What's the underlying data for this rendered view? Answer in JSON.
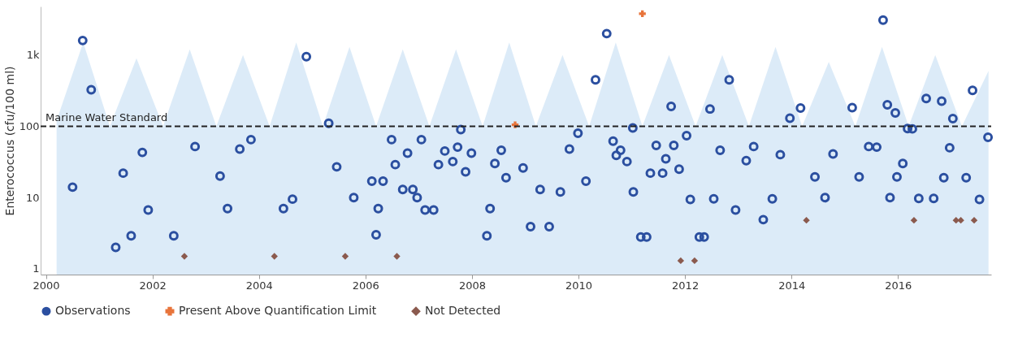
{
  "chart_data": {
    "type": "scatter",
    "ylabel": "Enterococcus (cfu/100 ml)",
    "xlim": [
      1999.9,
      2017.75
    ],
    "xticks": [
      2000,
      2002,
      2004,
      2006,
      2008,
      2010,
      2012,
      2014,
      2016
    ],
    "ylim": [
      0.83,
      4800
    ],
    "yticks": [
      1,
      10,
      100,
      {
        "value": 1000,
        "label": "1k"
      }
    ],
    "log": "y",
    "grid": false,
    "legend": "bottom",
    "ref_lines": [
      {
        "axis": "y",
        "value": 100,
        "label": "Marine Water Standard",
        "color": "#222222",
        "line_style": "dashed"
      }
    ],
    "series": [
      {
        "type": "area",
        "color": "#d6e7f7",
        "x": [
          2000.2,
          2000.7,
          2001.2,
          2001.7,
          2002.2,
          2002.7,
          2003.2,
          2003.7,
          2004.2,
          2004.7,
          2005.2,
          2005.7,
          2006.2,
          2006.7,
          2007.2,
          2007.7,
          2008.2,
          2008.7,
          2009.2,
          2009.7,
          2010.2,
          2010.7,
          2011.2,
          2011.7,
          2012.2,
          2012.7,
          2013.2,
          2013.7,
          2014.2,
          2014.7,
          2015.2,
          2015.7,
          2016.2,
          2016.7,
          2017.2,
          2017.7
        ],
        "values": [
          120,
          1500,
          100,
          900,
          100,
          1200,
          100,
          1000,
          100,
          1500,
          100,
          1300,
          100,
          1200,
          100,
          1200,
          100,
          1500,
          100,
          1000,
          100,
          1500,
          100,
          1000,
          100,
          1000,
          100,
          1300,
          100,
          800,
          100,
          1300,
          100,
          1000,
          100,
          600
        ]
      },
      {
        "name": "Observations",
        "marker": "circle",
        "color": "#2b4fa0",
        "x": [
          2000.5,
          2000.69,
          2000.85,
          2001.31,
          2001.45,
          2001.6,
          2001.81,
          2001.92,
          2002.4,
          2002.8,
          2003.27,
          2003.41,
          2003.64,
          2003.85,
          2004.46,
          2004.63,
          2004.89,
          2005.31,
          2005.46,
          2005.78,
          2006.12,
          2006.2,
          2006.24,
          2006.33,
          2006.49,
          2006.56,
          2006.7,
          2006.79,
          2006.89,
          2006.97,
          2007.05,
          2007.12,
          2007.28,
          2007.37,
          2007.49,
          2007.64,
          2007.73,
          2007.79,
          2007.88,
          2007.99,
          2008.28,
          2008.34,
          2008.43,
          2008.55,
          2008.64,
          2008.96,
          2009.1,
          2009.28,
          2009.45,
          2009.66,
          2009.83,
          2009.99,
          2010.14,
          2010.32,
          2010.53,
          2010.65,
          2010.71,
          2010.79,
          2010.91,
          2011.02,
          2011.03,
          2011.17,
          2011.28,
          2011.35,
          2011.46,
          2011.58,
          2011.64,
          2011.74,
          2011.79,
          2011.89,
          2012.03,
          2012.1,
          2012.27,
          2012.36,
          2012.47,
          2012.54,
          2012.66,
          2012.83,
          2012.95,
          2013.15,
          2013.29,
          2013.47,
          2013.64,
          2013.79,
          2013.97,
          2014.17,
          2014.44,
          2014.63,
          2014.78,
          2015.14,
          2015.27,
          2015.45,
          2015.6,
          2015.72,
          2015.8,
          2015.85,
          2015.95,
          2015.98,
          2016.09,
          2016.18,
          2016.27,
          2016.39,
          2016.53,
          2016.67,
          2016.82,
          2016.86,
          2016.97,
          2017.03,
          2017.28,
          2017.4,
          2017.53,
          2017.69
        ],
        "values": [
          14,
          1600,
          325,
          2,
          22,
          2.9,
          43,
          6.7,
          2.9,
          52,
          20,
          7,
          48,
          65,
          7,
          9.5,
          950,
          110,
          27,
          10,
          17,
          3,
          7,
          17,
          65,
          29,
          13,
          42,
          13,
          10,
          65,
          6.7,
          6.7,
          29,
          45,
          32,
          51,
          90,
          23,
          42,
          2.9,
          7,
          30,
          46,
          19,
          26,
          3.9,
          13,
          3.9,
          12,
          48,
          80,
          17,
          450,
          2000,
          62,
          39,
          46,
          32,
          95,
          12,
          2.8,
          2.8,
          22,
          54,
          22,
          35,
          190,
          54,
          25,
          74,
          9.4,
          2.8,
          2.8,
          175,
          9.6,
          46,
          450,
          6.7,
          33,
          52,
          4.9,
          9.6,
          40,
          130,
          180,
          19.5,
          10,
          41,
          183,
          19.5,
          52,
          51,
          3100,
          200,
          10,
          154,
          19.5,
          30,
          93,
          92,
          9.7,
          245,
          9.7,
          225,
          19,
          50,
          128,
          19,
          320,
          9.4,
          70
        ]
      },
      {
        "name": "Present Above Quantification Limit",
        "marker": "cross",
        "color": "#e8743b",
        "x": [
          2008.81,
          2011.2
        ],
        "values": [
          105,
          3800
        ]
      },
      {
        "name": "Not Detected",
        "marker": "diamond",
        "color": "#8b5a4e",
        "x": [
          2002.6,
          2004.29,
          2005.62,
          2006.59,
          2011.92,
          2012.18,
          2014.28,
          2016.3,
          2017.09,
          2017.18,
          2017.43
        ],
        "values": [
          1.5,
          1.5,
          1.5,
          1.5,
          1.3,
          1.3,
          4.8,
          4.8,
          4.8,
          4.8,
          4.8
        ]
      }
    ]
  }
}
